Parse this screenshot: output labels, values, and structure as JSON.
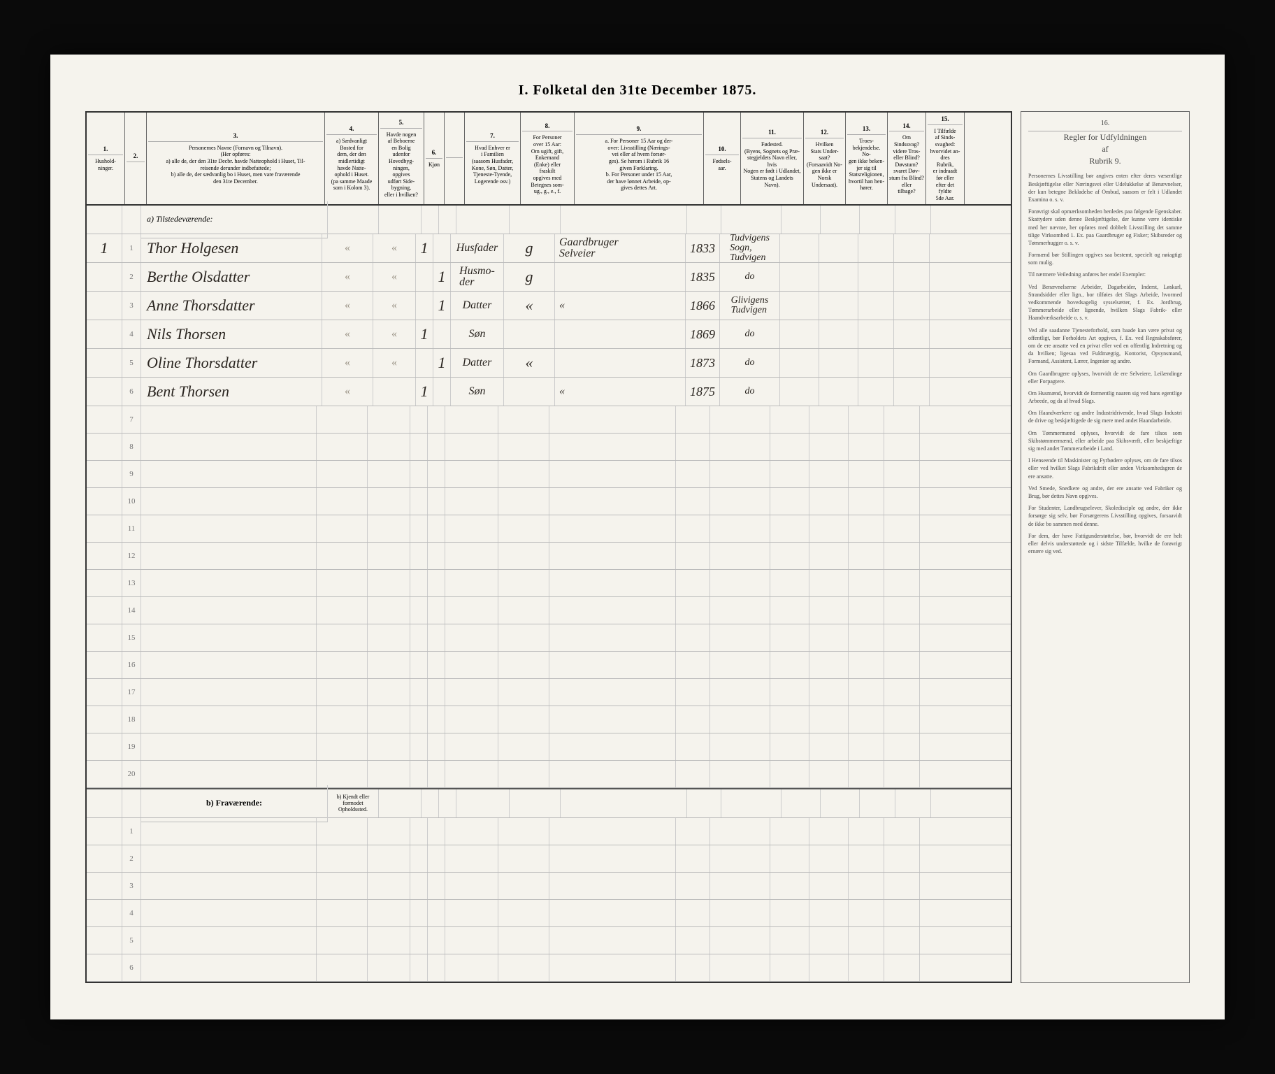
{
  "title": "I.  Folketal  den  31te  December  1875.",
  "columns": [
    {
      "no": "1.",
      "w": "c1",
      "label": "Hushold-\nninger."
    },
    {
      "no": "2.",
      "w": "c2",
      "label": ""
    },
    {
      "no": "3.",
      "w": "c3",
      "label": "Personernes Navne (Fornavn og Tilnavn).\n(Her opføres:\na) alle de, der den 31te Decbr. havde Natteophold i Huset, Til-\nreisende derunder indbefattede;\nb) alle de, der sædvanlig bo i Huset, men vare fraværende\nden 31te December."
    },
    {
      "no": "4.",
      "w": "c4",
      "label": "a) Sædvanligt\nBosted for\ndem, der den\nmidlertidigt\nhavde Natte-\nophold i Huset.\n(pa samme Maade\nsom i Kolom 3)."
    },
    {
      "no": "5.",
      "w": "c5",
      "label": "Havde nogen\naf Beboerne\nen Bolig\nudenfor\nHovedbyg-\nningen,\nopgives\nudført Side-\nbygning,\neller i hvilken?"
    },
    {
      "no": "6.",
      "w": "c6",
      "label": "Kjøn"
    },
    {
      "no": "",
      "w": "c6b",
      "label": ""
    },
    {
      "no": "7.",
      "w": "c7",
      "label": "Hvad Enhver er\ni Familien\n(saasom Husfader,\nKone, Søn, Datter,\nTjeneste-Tyende,\nLogerende osv.)"
    },
    {
      "no": "8.",
      "w": "c8",
      "label": "For Personer\nover 15 Aar:\nOm ugift, gift,\nEnkemand\n(Enke) eller\nfraskilt\nopgives med\nBetegnes som-\nug., g., e., f."
    },
    {
      "no": "9.",
      "w": "c9",
      "label": "a. For Personer 15 Aar og der-\nover: Livsstilling (Nærings-\nvei eller af hvem forsør-\nges). Se herom i Rubrik 16\ngiven Forklaring.\nb. For Personer under 15 Aar,\nder have lønnet Arbeide, op-\ngives dettes Art."
    },
    {
      "no": "10.",
      "w": "c10",
      "label": "Fødsels-\naar."
    },
    {
      "no": "11.",
      "w": "c11",
      "label": "Fødested.\n(Byens, Sognets og Præ-\nstegjeldets Navn eller, hvis\nNogen er født i Udlandet,\nStatens og Landets\nNavn)."
    },
    {
      "no": "12.",
      "w": "c12",
      "label": "Hvilken\nStats Under-\nsaat?\n(Forsaavidt No-\ngen ikke er Norsk\nUndersaat)."
    },
    {
      "no": "13.",
      "w": "c13",
      "label": "Troes-\nbekjendelse.\nNo-\ngen ikke beken-\njer sig til\nStatsreligionen,\nhvortil han hen-\nhører."
    },
    {
      "no": "14.",
      "w": "c14",
      "label": "Om\nSindssvag?\nvidere Tros-\neller Blind?\nDøvstum?\nsvaret Døv-\nstum fra Blind?\neller\ntilbage?"
    },
    {
      "no": "15.",
      "w": "c15",
      "label": "I Tilfælde\naf Sinds-\nsvaghed:\nhvorvidet an-\ndres\nRubrik,\ner indraadt\nfør eller\nefter det\nfyldte\n5de Aar."
    }
  ],
  "section_a": "a) Tilstedeværende:",
  "section_b": "b) Fraværende:",
  "section_b_sub": "b) Kjendt eller\nformodet\nOpholdssted.",
  "rows_a": [
    {
      "hh": "1",
      "n": "1",
      "name": "Thor Holgesen",
      "c4": "«",
      "c5": "«",
      "c6": "1",
      "c7": "Husfader",
      "c8": "g",
      "c9": "Gaardbruger\nSelveier",
      "c10": "1833",
      "c11": "Tudvigens\nSogn,\nTudvigen"
    },
    {
      "hh": "",
      "n": "2",
      "name": "Berthe Olsdatter",
      "c4": "«",
      "c5": "«",
      "c6": "",
      "c6b": "1",
      "c7": "Husmo-\nder",
      "c8": "g",
      "c9": "",
      "c10": "1835",
      "c11": "do"
    },
    {
      "hh": "",
      "n": "3",
      "name": "Anne Thorsdatter",
      "c4": "«",
      "c5": "«",
      "c6": "",
      "c6b": "1",
      "c7": "Datter",
      "c8": "«",
      "c9": "«",
      "c10": "1866",
      "c11": "Glivigens\nTudvigen"
    },
    {
      "hh": "",
      "n": "4",
      "name": "Nils Thorsen",
      "c4": "«",
      "c5": "«",
      "c6": "1",
      "c7": "Søn",
      "c8": "",
      "c9": "",
      "c10": "1869",
      "c11": "do"
    },
    {
      "hh": "",
      "n": "5",
      "name": "Oline Thorsdatter",
      "c4": "«",
      "c5": "«",
      "c6": "",
      "c6b": "1",
      "c7": "Datter",
      "c8": "«",
      "c9": "",
      "c10": "1873",
      "c11": "do"
    },
    {
      "hh": "",
      "n": "6",
      "name": "Bent Thorsen",
      "c4": "«",
      "c5": "",
      "c6": "1",
      "c7": "Søn",
      "c8": "",
      "c9": "«",
      "c10": "1875",
      "c11": "do"
    }
  ],
  "empty_a": [
    "7",
    "8",
    "9",
    "10",
    "11",
    "12",
    "13",
    "14",
    "15",
    "16",
    "17",
    "18",
    "19",
    "20"
  ],
  "empty_b": [
    "1",
    "2",
    "3",
    "4",
    "5",
    "6"
  ],
  "side": {
    "col": "16.",
    "title": "Regler for Udfyldningen\naf\nRubrik 9.",
    "paragraphs": [
      "Personernes Livsstilling bør angives enten efter deres væsentlige Beskjæftigelse eller Næringsvei eller Udelukkelse af Benævnelser, der kun betegne Bekladelse af Ombud, saasom er felt i Udlandet Examina o. s. v.",
      "Forøvrigt skal opmærksomheden henledes paa følgende Egenskaber. Skattydere uden denne Beskjæftigelse, der kunne være identiske med her nævnte, her opføres med dobbelt Livsstilling det samme tilige Virksomhed 1. Ex. paa Gaardbruger og Fisker; Skibsreder og Tømmerhugger o. s. v.",
      "Formænd bør Stillingen opgives saa bestemt, specielt og nøiagtigt som mulig.",
      "Til nærmere Veiledning anføres her endel Exempler:",
      "Ved Benævnelserne Arbeider, Dagarbeider, Inderst, Løskarl, Strandsidder eller lign., bor tilføies det Slags Arbeide, hvormed vedkommende hovedsagelig sysselsætter, f. Ex. Jordbrug, Tømmerarbeide eller lignende, hvilken Slags Fabrik- eller Haandværksarbeide o. s. v.",
      "Ved alle saadanne Tjenesteforhold, som baade kan være privat og offentligt, bør Forholdets Art opgives, f. Ex. ved Regnskabsfører, om de ere ansatte ved en privat eller ved en offentlig Indretning og da hvilken; ligesaa ved Fuldmægtig, Kontorist, Opsynsmand, Formand, Assistent, Lærer, Ingeniør og andre.",
      "Om Gaardbrugere oplyses, hvorvidt de ere Selveiere, Leilændinge eller Forpagtere.",
      "Om Husmænd, hvorvidt de formentlig naaren sig ved hans egentlige Arbeede, og da af hvad Slags.",
      "Om Haandværkere og andre Industridrivende, hvad Slags Industri de drive og beskjæftigede de sig mere med andet Haandarbeide.",
      "Om Tømmermænd oplyses, hvorvidt de fare tilsos som Skibstømmermænd, eller arbeide paa Skibsværft, eller beskjæftige sig med andet Tømmerarbeide i Land.",
      "I Henseende til Maskinister og Fyrbødere oplyses, om de fare tilsos eller ved hvilket Slags Fabrikdrift eller anden Virksomhedsgren de ere ansatte.",
      "Ved Smede, Snedkere og andre, der ere ansatte ved Fabriker og Brug, bør dettes Navn opgives.",
      "For Studenter, Landbrugselever, Skoledisciple og andre, der ikke forsørge sig selv, bør Forsørgerens Livsstilling opgives, forsaavidt de ikke bo sammen med denne.",
      "For dem, der have Fattigunderstøttelse, bør, hvorvidt de ere helt eller delvis understøttede og i sidste Tilfælde, hvilke de forøvrigt ernære sig ved."
    ]
  },
  "colors": {
    "paper": "#f5f3ed",
    "ink": "#2a2520",
    "rule": "#bbb",
    "frame": "#333"
  }
}
